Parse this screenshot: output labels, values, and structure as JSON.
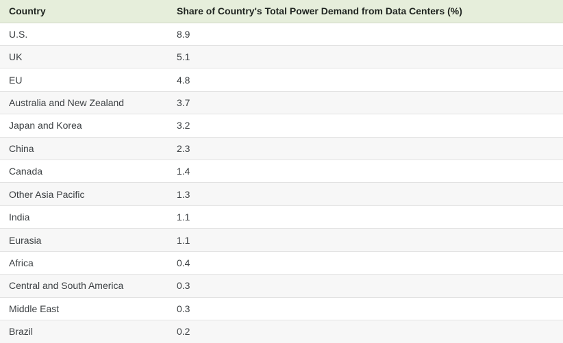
{
  "table": {
    "columns": [
      {
        "label": "Country"
      },
      {
        "label": "Share of Country's Total Power Demand from Data Centers (%)"
      }
    ],
    "rows": [
      {
        "country": "U.S.",
        "share": "8.9"
      },
      {
        "country": "UK",
        "share": "5.1"
      },
      {
        "country": "EU",
        "share": "4.8"
      },
      {
        "country": "Australia and New Zealand",
        "share": "3.7"
      },
      {
        "country": "Japan and Korea",
        "share": "3.2"
      },
      {
        "country": "China",
        "share": "2.3"
      },
      {
        "country": "Canada",
        "share": "1.4"
      },
      {
        "country": "Other Asia Pacific",
        "share": "1.3"
      },
      {
        "country": "India",
        "share": "1.1"
      },
      {
        "country": "Eurasia",
        "share": "1.1"
      },
      {
        "country": "Africa",
        "share": "0.4"
      },
      {
        "country": "Central and South America",
        "share": "0.3"
      },
      {
        "country": "Middle East",
        "share": "0.3"
      },
      {
        "country": "Brazil",
        "share": "0.2"
      }
    ]
  },
  "chart_data": {
    "type": "table",
    "title": "Share of Country's Total Power Demand from Data Centers (%)",
    "categories": [
      "U.S.",
      "UK",
      "EU",
      "Australia and New Zealand",
      "Japan and Korea",
      "China",
      "Canada",
      "Other Asia Pacific",
      "India",
      "Eurasia",
      "Africa",
      "Central and South America",
      "Middle East",
      "Brazil"
    ],
    "values": [
      8.9,
      5.1,
      4.8,
      3.7,
      3.2,
      2.3,
      1.4,
      1.3,
      1.1,
      1.1,
      0.4,
      0.3,
      0.3,
      0.2
    ],
    "xlabel": "Country",
    "ylabel": "Share of Country's Total Power Demand from Data Centers (%)"
  },
  "colors": {
    "header_bg": "#e6eedb",
    "header_text": "#1f2420",
    "row_bg": "#ffffff",
    "row_alt_bg": "#f7f7f7",
    "divider": "#e2e2e2",
    "body_text": "#3c4043"
  }
}
